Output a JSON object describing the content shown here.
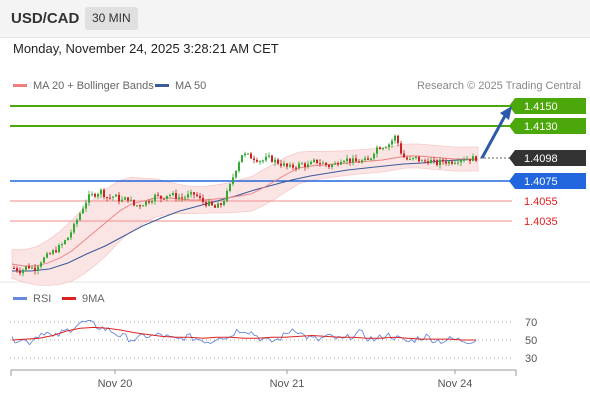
{
  "header": {
    "symbol": "USD/CAD",
    "interval": "30 MIN"
  },
  "datetime": "Monday, November 24, 2025 3:28:21 AM CET",
  "legend": {
    "ma20_label": "MA 20 + Bollinger Bands",
    "ma50_label": "MA 50",
    "ma20_color": "#f08080",
    "ma50_color": "#3a5a9a",
    "credit": "Research © 2025 Trading Central"
  },
  "colors": {
    "resistance": "#4ca80a",
    "support": "#2266dd",
    "minor_support": "#f4a0a0",
    "minor_support_text": "#e02020",
    "last_price_bg": "#333333",
    "arrow": "#2a5aa8",
    "bollinger_fill": "#fbe2e2",
    "candle_up": "#33aa33",
    "candle_down": "#cc2222",
    "rsi": "#6688dd",
    "rsi_ma": "#dd2222"
  },
  "chart_data": [
    {
      "type": "candlestick",
      "title": "",
      "timeframe": "30 MIN",
      "y_range": [
        1.396,
        1.418
      ],
      "x_ticks": [
        "Nov 20",
        "Nov 21",
        "Nov 24"
      ],
      "levels": [
        {
          "value": 1.415,
          "label": "1.4150",
          "kind": "resistance"
        },
        {
          "value": 1.413,
          "label": "1.4130",
          "kind": "resistance"
        },
        {
          "value": 1.4098,
          "label": "1.4098",
          "kind": "last_price"
        },
        {
          "value": 1.4075,
          "label": "1.4075",
          "kind": "pivot_support"
        },
        {
          "value": 1.4055,
          "label": "1.4055",
          "kind": "support"
        },
        {
          "value": 1.4035,
          "label": "1.4035",
          "kind": "support"
        }
      ],
      "price_path": [
        1.3988,
        1.3985,
        1.399,
        1.3987,
        1.3995,
        1.4,
        1.4005,
        1.401,
        1.4018,
        1.403,
        1.4045,
        1.4058,
        1.4062,
        1.4065,
        1.4058,
        1.406,
        1.4055,
        1.4058,
        1.405,
        1.4052,
        1.4055,
        1.406,
        1.4058,
        1.4062,
        1.406,
        1.4058,
        1.406,
        1.4062,
        1.4055,
        1.4052,
        1.4048,
        1.4052,
        1.4065,
        1.4085,
        1.4102,
        1.41,
        1.4098,
        1.4095,
        1.4098,
        1.4095,
        1.4092,
        1.4088,
        1.409,
        1.4092,
        1.409,
        1.4095,
        1.4093,
        1.409,
        1.4092,
        1.4098,
        1.4096,
        1.4094,
        1.4095,
        1.4095,
        1.4108,
        1.411,
        1.4112,
        1.412,
        1.41,
        1.4095,
        1.4098,
        1.4094,
        1.4096,
        1.4092,
        1.4095,
        1.4094,
        1.4096,
        1.4098,
        1.4097,
        1.4098
      ],
      "ma20_path": [
        1.3992,
        1.399,
        1.399,
        1.3993,
        1.3998,
        1.4005,
        1.4015,
        1.4025,
        1.4035,
        1.4045,
        1.4052,
        1.4055,
        1.4058,
        1.4058,
        1.4057,
        1.4056,
        1.4056,
        1.4057,
        1.4058,
        1.406,
        1.4062,
        1.4068,
        1.4075,
        1.4082,
        1.4088,
        1.409,
        1.4091,
        1.4092,
        1.4093,
        1.4094,
        1.4095,
        1.4096,
        1.4098,
        1.41,
        1.41,
        1.4099,
        1.4098,
        1.4097,
        1.4097,
        1.4097
      ],
      "ma50_path": [
        1.3985,
        1.3985,
        1.3987,
        1.3993,
        1.4002,
        1.401,
        1.402,
        1.403,
        1.4038,
        1.4045,
        1.405,
        1.4055,
        1.406,
        1.4066,
        1.4071,
        1.4076,
        1.408,
        1.4083,
        1.4086,
        1.4088,
        1.409,
        1.4092,
        1.4093,
        1.4095,
        1.4096,
        1.4097
      ],
      "projection": {
        "from": 1.4098,
        "to": 1.415
      }
    },
    {
      "type": "line",
      "title": "",
      "series": [
        {
          "name": "RSI",
          "color": "#6688dd"
        },
        {
          "name": "9MA",
          "color": "#dd2222"
        }
      ],
      "y_ticks": [
        70,
        50,
        30
      ],
      "y_range": [
        20,
        80
      ],
      "rsi_path": [
        50,
        52,
        47,
        55,
        60,
        52,
        58,
        62,
        68,
        70,
        66,
        63,
        60,
        55,
        52,
        50,
        55,
        54,
        56,
        52,
        50,
        54,
        52,
        50,
        48,
        55,
        52,
        60,
        62,
        58,
        52,
        48,
        50,
        56,
        64,
        56,
        52,
        50,
        54,
        52,
        50,
        55,
        58,
        52,
        50,
        56,
        54,
        50,
        48,
        52,
        54,
        50,
        49,
        51,
        50,
        49,
        50
      ],
      "rsi_ma_path": [
        50,
        51,
        52,
        55,
        60,
        63,
        64,
        63,
        61,
        58,
        56,
        54,
        53,
        53,
        52,
        53,
        53,
        52,
        52,
        53,
        53,
        54,
        55,
        54,
        53,
        53,
        52,
        52,
        53,
        52,
        51,
        51,
        51,
        50,
        50
      ]
    }
  ]
}
